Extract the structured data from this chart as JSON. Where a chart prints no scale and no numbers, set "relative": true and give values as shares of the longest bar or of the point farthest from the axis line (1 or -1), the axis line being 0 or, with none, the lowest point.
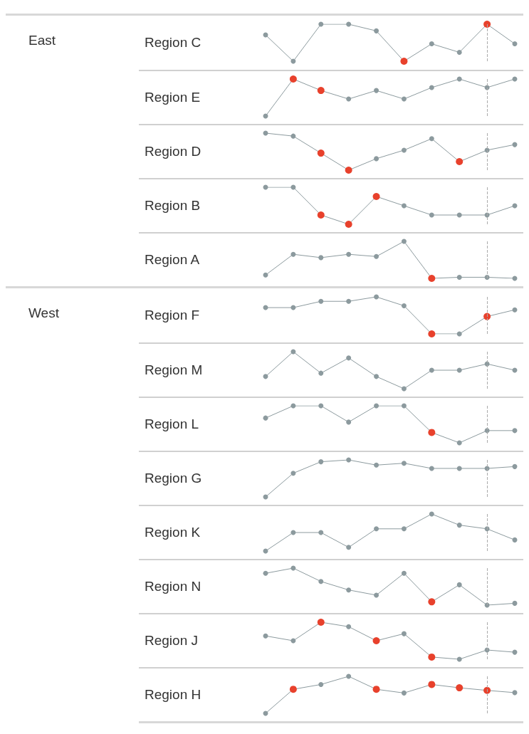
{
  "chart_data": [
    {
      "type": "line",
      "title": "Region C",
      "annotations": [
        "East"
      ],
      "relative": true,
      "marker": "circle",
      "categories": [
        null,
        null,
        null,
        null,
        null,
        null,
        null,
        null,
        null,
        null
      ],
      "series": [
        {
          "color": "#8c9a9e",
          "values": [
            0.71,
            0,
            1,
            1,
            0.82,
            0,
            0.47,
            0.24,
            1,
            0.47
          ],
          "colors": [
            "#8c9a9e",
            "#8c9a9e",
            "#8c9a9e",
            "#8c9a9e",
            "#8c9a9e",
            "#e8412c",
            "#8c9a9e",
            "#8c9a9e",
            "#e8412c",
            "#8c9a9e"
          ]
        }
      ]
    },
    {
      "type": "line",
      "title": "Region E",
      "relative": true,
      "marker": "circle",
      "categories": [
        null,
        null,
        null,
        null,
        null,
        null,
        null,
        null,
        null,
        null
      ],
      "series": [
        {
          "color": "#8c9a9e",
          "values": [
            0,
            1,
            0.69,
            0.46,
            0.69,
            0.46,
            0.77,
            1,
            0.77,
            1
          ],
          "colors": [
            "#8c9a9e",
            "#e8412c",
            "#e8412c",
            "#8c9a9e",
            "#8c9a9e",
            "#8c9a9e",
            "#8c9a9e",
            "#8c9a9e",
            "#8c9a9e",
            "#8c9a9e"
          ]
        }
      ]
    },
    {
      "type": "line",
      "title": "Region D",
      "relative": true,
      "marker": "circle",
      "categories": [
        null,
        null,
        null,
        null,
        null,
        null,
        null,
        null,
        null,
        null
      ],
      "series": [
        {
          "color": "#8c9a9e",
          "values": [
            1,
            0.92,
            0.46,
            0,
            0.31,
            0.54,
            0.85,
            0.23,
            0.54,
            0.69
          ],
          "colors": [
            "#8c9a9e",
            "#8c9a9e",
            "#e8412c",
            "#e8412c",
            "#8c9a9e",
            "#8c9a9e",
            "#8c9a9e",
            "#e8412c",
            "#8c9a9e",
            "#8c9a9e"
          ]
        }
      ]
    },
    {
      "type": "line",
      "title": "Region B",
      "relative": true,
      "marker": "circle",
      "categories": [
        null,
        null,
        null,
        null,
        null,
        null,
        null,
        null,
        null,
        null
      ],
      "series": [
        {
          "color": "#8c9a9e",
          "values": [
            1,
            1,
            0.25,
            0,
            0.75,
            0.5,
            0.25,
            0.25,
            0.25,
            0.5
          ],
          "colors": [
            "#8c9a9e",
            "#8c9a9e",
            "#e8412c",
            "#e8412c",
            "#e8412c",
            "#8c9a9e",
            "#8c9a9e",
            "#8c9a9e",
            "#8c9a9e",
            "#8c9a9e"
          ]
        }
      ]
    },
    {
      "type": "line",
      "title": "Region A",
      "relative": true,
      "marker": "circle",
      "categories": [
        null,
        null,
        null,
        null,
        null,
        null,
        null,
        null,
        null,
        null
      ],
      "series": [
        {
          "color": "#8c9a9e",
          "values": [
            0.09,
            0.65,
            0.56,
            0.65,
            0.59,
            1,
            0,
            0.03,
            0.03,
            0
          ],
          "colors": [
            "#8c9a9e",
            "#8c9a9e",
            "#8c9a9e",
            "#8c9a9e",
            "#8c9a9e",
            "#8c9a9e",
            "#e8412c",
            "#8c9a9e",
            "#8c9a9e",
            "#8c9a9e"
          ]
        }
      ]
    },
    {
      "type": "line",
      "title": "Region F",
      "annotations": [
        "West"
      ],
      "relative": true,
      "marker": "circle",
      "categories": [
        null,
        null,
        null,
        null,
        null,
        null,
        null,
        null,
        null,
        null
      ],
      "series": [
        {
          "color": "#8c9a9e",
          "values": [
            0.71,
            0.71,
            0.88,
            0.88,
            1,
            0.76,
            0,
            0,
            0.47,
            0.65
          ],
          "colors": [
            "#8c9a9e",
            "#8c9a9e",
            "#8c9a9e",
            "#8c9a9e",
            "#8c9a9e",
            "#8c9a9e",
            "#e8412c",
            "#8c9a9e",
            "#e8412c",
            "#8c9a9e"
          ]
        }
      ]
    },
    {
      "type": "line",
      "title": "Region M",
      "relative": true,
      "marker": "circle",
      "categories": [
        null,
        null,
        null,
        null,
        null,
        null,
        null,
        null,
        null,
        null
      ],
      "series": [
        {
          "color": "#8c9a9e",
          "values": [
            0.33,
            1,
            0.42,
            0.83,
            0.33,
            0,
            0.5,
            0.5,
            0.67,
            0.5
          ]
        }
      ]
    },
    {
      "type": "line",
      "title": "Region L",
      "relative": true,
      "marker": "circle",
      "categories": [
        null,
        null,
        null,
        null,
        null,
        null,
        null,
        null,
        null,
        null
      ],
      "series": [
        {
          "color": "#8c9a9e",
          "values": [
            0.67,
            1,
            1,
            0.56,
            1,
            1,
            0.28,
            0,
            0.33,
            0.33
          ],
          "colors": [
            "#8c9a9e",
            "#8c9a9e",
            "#8c9a9e",
            "#8c9a9e",
            "#8c9a9e",
            "#8c9a9e",
            "#e8412c",
            "#8c9a9e",
            "#8c9a9e",
            "#8c9a9e"
          ]
        }
      ]
    },
    {
      "type": "line",
      "title": "Region G",
      "relative": true,
      "marker": "circle",
      "categories": [
        null,
        null,
        null,
        null,
        null,
        null,
        null,
        null,
        null,
        null
      ],
      "series": [
        {
          "color": "#8c9a9e",
          "values": [
            0,
            0.64,
            0.95,
            1,
            0.86,
            0.91,
            0.77,
            0.77,
            0.77,
            0.82
          ]
        }
      ]
    },
    {
      "type": "line",
      "title": "Region K",
      "relative": true,
      "marker": "circle",
      "categories": [
        null,
        null,
        null,
        null,
        null,
        null,
        null,
        null,
        null,
        null
      ],
      "series": [
        {
          "color": "#8c9a9e",
          "values": [
            0,
            0.5,
            0.5,
            0.1,
            0.6,
            0.6,
            1,
            0.7,
            0.6,
            0.3
          ]
        }
      ]
    },
    {
      "type": "line",
      "title": "Region N",
      "relative": true,
      "marker": "circle",
      "categories": [
        null,
        null,
        null,
        null,
        null,
        null,
        null,
        null,
        null,
        null
      ],
      "series": [
        {
          "color": "#8c9a9e",
          "values": [
            0.86,
            1,
            0.64,
            0.41,
            0.27,
            0.86,
            0.09,
            0.55,
            0,
            0.05
          ],
          "colors": [
            "#8c9a9e",
            "#8c9a9e",
            "#8c9a9e",
            "#8c9a9e",
            "#8c9a9e",
            "#8c9a9e",
            "#e8412c",
            "#8c9a9e",
            "#8c9a9e",
            "#8c9a9e"
          ]
        }
      ]
    },
    {
      "type": "line",
      "title": "Region J",
      "relative": true,
      "marker": "circle",
      "categories": [
        null,
        null,
        null,
        null,
        null,
        null,
        null,
        null,
        null,
        null
      ],
      "series": [
        {
          "color": "#8c9a9e",
          "values": [
            0.63,
            0.5,
            1,
            0.88,
            0.5,
            0.69,
            0.06,
            0,
            0.25,
            0.19
          ],
          "colors": [
            "#8c9a9e",
            "#8c9a9e",
            "#e8412c",
            "#8c9a9e",
            "#e8412c",
            "#8c9a9e",
            "#e8412c",
            "#8c9a9e",
            "#8c9a9e",
            "#8c9a9e"
          ]
        }
      ]
    },
    {
      "type": "line",
      "title": "Region H",
      "relative": true,
      "marker": "circle",
      "categories": [
        null,
        null,
        null,
        null,
        null,
        null,
        null,
        null,
        null,
        null
      ],
      "series": [
        {
          "color": "#8c9a9e",
          "values": [
            0,
            0.65,
            0.78,
            1,
            0.65,
            0.55,
            0.78,
            0.69,
            0.62,
            0.56
          ],
          "colors": [
            "#8c9a9e",
            "#e8412c",
            "#8c9a9e",
            "#8c9a9e",
            "#e8412c",
            "#8c9a9e",
            "#e8412c",
            "#e8412c",
            "#e8412c",
            "#8c9a9e"
          ]
        }
      ]
    }
  ]
}
